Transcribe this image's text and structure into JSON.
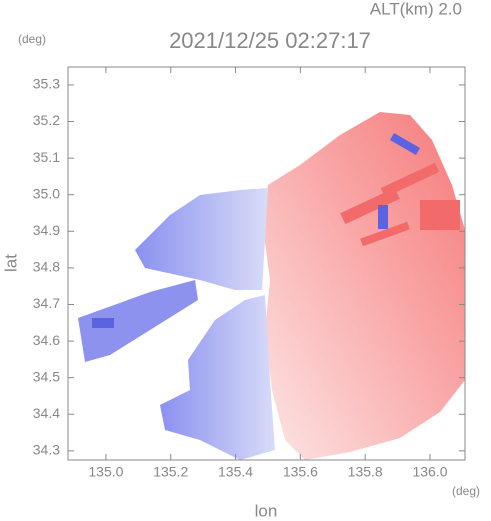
{
  "chart_data": {
    "type": "radar",
    "altitude_label": "ALT(km) 2.0",
    "title": "2021/12/25 02:27:17",
    "y_unit": "(deg)",
    "x_unit": "(deg)",
    "ylabel": "lat",
    "xlabel": "lon",
    "xlim": [
      134.883,
      136.108
    ],
    "ylim": [
      34.275,
      35.349
    ],
    "xticks": [
      {
        "value": 135,
        "label": "135.0"
      },
      {
        "value": 135.2,
        "label": "135.2"
      },
      {
        "value": 135.4,
        "label": "135.4"
      },
      {
        "value": 135.6,
        "label": "135.6"
      },
      {
        "value": 135.8,
        "label": "135.8"
      },
      {
        "value": 136,
        "label": "136.0"
      }
    ],
    "yticks": [
      34.3,
      34.4,
      34.5,
      34.6,
      34.7,
      34.8,
      34.9,
      {
        "value": 35,
        "label": "35.0"
      },
      35.1,
      35.2,
      35.3
    ]
  }
}
